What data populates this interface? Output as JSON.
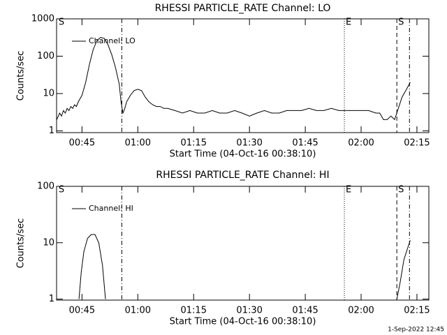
{
  "chart_data": [
    {
      "type": "line",
      "title": "RHESSI PARTICLE_RATE Channel: LO",
      "x_label": "Start Time (04-Oct-16 00:38:10)",
      "y_label": "Counts/sec",
      "log_y": true,
      "xlim": [
        38.17,
        138.2
      ],
      "ylim": [
        0.9,
        1000
      ],
      "yticks": [
        1,
        10,
        100,
        1000
      ],
      "xticks": [
        {
          "value": 45,
          "label": "00:45"
        },
        {
          "value": 60,
          "label": "01:00"
        },
        {
          "value": 75,
          "label": "01:15"
        },
        {
          "value": 90,
          "label": "01:30"
        },
        {
          "value": 105,
          "label": "01:45"
        },
        {
          "value": 120,
          "label": "02:00"
        },
        {
          "value": 135,
          "label": "02:15"
        }
      ],
      "vlines": [
        {
          "x": 55.7,
          "dash": "dashdot"
        },
        {
          "x": 115.5,
          "dash": "dot",
          "label": "E"
        },
        {
          "x": 129.6,
          "dash": "dash",
          "label": "S"
        },
        {
          "x": 133.0,
          "dash": "dashdot"
        }
      ],
      "annotations": [
        {
          "text": "S",
          "x": 38.7
        }
      ],
      "series": [
        {
          "name": "Channel: LO",
          "color": "#000000",
          "x": [
            38.2,
            39,
            39.5,
            40,
            40.5,
            41,
            41.5,
            42,
            42.5,
            43,
            43.5,
            44,
            45,
            46,
            47,
            48,
            49,
            50,
            51,
            52,
            53,
            54,
            55,
            55.5,
            56,
            56.5,
            57,
            58,
            59,
            60,
            61,
            62,
            63,
            64,
            65,
            66,
            67,
            68,
            70,
            72,
            74,
            76,
            78,
            80,
            82,
            84,
            86,
            88,
            90,
            92,
            94,
            96,
            98,
            100,
            102,
            104,
            106,
            108,
            110,
            112,
            114,
            116,
            118,
            120,
            122,
            124,
            125,
            126,
            127,
            128,
            129,
            130,
            131,
            132,
            133.2
          ],
          "values": [
            2,
            3,
            2.5,
            3.5,
            3,
            4,
            3.5,
            4.5,
            4,
            5,
            4.5,
            6,
            9,
            20,
            60,
            150,
            260,
            320,
            300,
            200,
            110,
            50,
            18,
            6,
            3,
            4,
            6,
            9,
            12,
            13,
            12,
            8,
            6,
            5,
            4.5,
            4.5,
            4,
            4,
            3.5,
            3,
            3.5,
            3,
            3,
            3.5,
            3,
            3,
            3.5,
            3,
            2.5,
            3,
            3.5,
            3,
            3,
            3.5,
            3.5,
            3.5,
            4,
            3.5,
            3.5,
            4,
            3.5,
            3.5,
            3.5,
            3.5,
            3.5,
            3,
            3,
            2,
            2,
            2.5,
            2,
            4,
            8,
            12,
            20
          ]
        }
      ]
    },
    {
      "type": "line",
      "title": "RHESSI PARTICLE_RATE Channel: HI",
      "x_label": "Start Time (04-Oct-16 00:38:10)",
      "y_label": "Counts/sec",
      "log_y": true,
      "xlim": [
        38.17,
        138.2
      ],
      "ylim": [
        0.96,
        100
      ],
      "yticks": [
        1,
        10,
        100
      ],
      "xticks": [
        {
          "value": 45,
          "label": "00:45"
        },
        {
          "value": 60,
          "label": "01:00"
        },
        {
          "value": 75,
          "label": "01:15"
        },
        {
          "value": 90,
          "label": "01:30"
        },
        {
          "value": 105,
          "label": "01:45"
        },
        {
          "value": 120,
          "label": "02:00"
        },
        {
          "value": 135,
          "label": "02:15"
        }
      ],
      "vlines": [
        {
          "x": 55.7,
          "dash": "dashdot"
        },
        {
          "x": 115.5,
          "dash": "dot",
          "label": "E"
        },
        {
          "x": 129.6,
          "dash": "dash",
          "label": "S"
        },
        {
          "x": 133.0,
          "dash": "dashdot"
        }
      ],
      "annotations": [
        {
          "text": "S",
          "x": 38.7
        }
      ],
      "series": [
        {
          "name": "Channel: HI",
          "color": "#000000",
          "x": [
            44.2,
            44.8,
            45.5,
            46.5,
            47.5,
            48.5,
            49.5,
            50.5,
            51.3,
            52,
            129.6,
            130.5,
            131.5,
            132.5,
            133.2
          ],
          "values": [
            1,
            3,
            7,
            12,
            14,
            14,
            10,
            4,
            1,
            null,
            1,
            2,
            5,
            8,
            11
          ]
        }
      ]
    }
  ],
  "footer": "1-Sep-2022 12:45"
}
